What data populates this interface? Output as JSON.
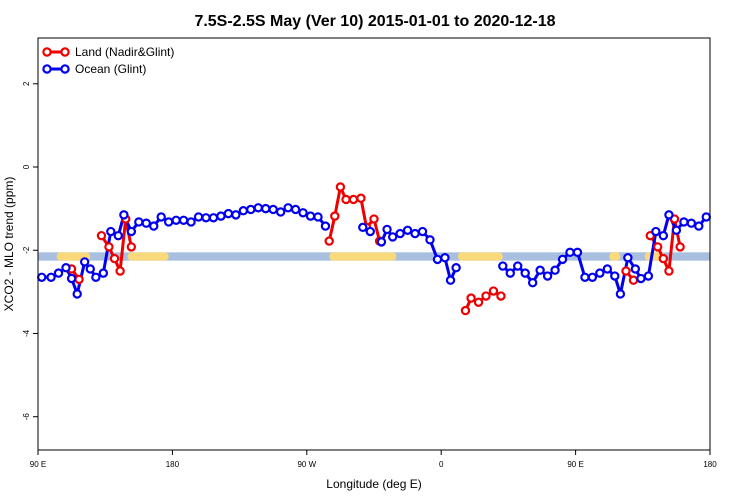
{
  "chart_data": {
    "type": "line",
    "title": "7.5S-2.5S May (Ver 10)   2015-01-01 to 2020-12-18",
    "xlabel": "Longitude (deg E)",
    "ylabel": "XCO2 - MLO trend (ppm)",
    "xlim": [
      90,
      450
    ],
    "ylim": [
      -6.8,
      3.1
    ],
    "x_ticks": [
      {
        "value": 90,
        "label": "90 E"
      },
      {
        "value": 162,
        "label": "180"
      },
      {
        "value": 234,
        "label": "90 W"
      },
      {
        "value": 306,
        "label": "0"
      },
      {
        "value": 378,
        "label": "90 E"
      },
      {
        "value": 450,
        "label": "180"
      }
    ],
    "y_ticks": [
      {
        "value": 2,
        "label": "2"
      },
      {
        "value": 0,
        "label": "0"
      },
      {
        "value": -2,
        "label": "-2"
      },
      {
        "value": -4,
        "label": "-4"
      },
      {
        "value": -6,
        "label": "-6"
      }
    ],
    "legend_position": "top-left",
    "colors": {
      "land": "#ee0000",
      "ocean": "#0000ee",
      "ocean_band": "#a9bfe0",
      "land_band": "#fad97a"
    },
    "band": {
      "y_top": -2.05,
      "y_bottom": -2.25
    },
    "land_segments": [
      [
        100,
        118
      ],
      [
        138,
        160
      ],
      [
        246,
        282
      ],
      [
        315,
        339
      ],
      [
        396,
        402
      ],
      [
        415,
        426
      ]
    ],
    "series": [
      {
        "name": "Land (Nadir&Glint)",
        "color": "#ee0000",
        "segments": [
          [
            [
              108,
              -2.45
            ],
            [
              112,
              -2.7
            ]
          ],
          [
            [
              124,
              -1.65
            ],
            [
              128,
              -1.92
            ],
            [
              131,
              -2.2
            ],
            [
              134,
              -2.5
            ],
            [
              137,
              -1.25
            ],
            [
              140,
              -1.92
            ]
          ],
          [
            [
              246,
              -1.78
            ],
            [
              249,
              -1.18
            ],
            [
              252,
              -0.48
            ],
            [
              255,
              -0.78
            ],
            [
              259,
              -0.78
            ],
            [
              263,
              -0.75
            ],
            [
              266,
              -1.45
            ],
            [
              270,
              -1.25
            ],
            [
              273,
              -1.78
            ]
          ],
          [
            [
              319,
              -3.45
            ],
            [
              322,
              -3.15
            ],
            [
              326,
              -3.25
            ],
            [
              330,
              -3.1
            ],
            [
              334,
              -2.98
            ],
            [
              338,
              -3.1
            ]
          ],
          [
            [
              405,
              -2.5
            ],
            [
              409,
              -2.72
            ]
          ],
          [
            [
              418,
              -1.65
            ],
            [
              422,
              -1.92
            ],
            [
              425,
              -2.2
            ],
            [
              428,
              -2.5
            ],
            [
              431,
              -1.25
            ],
            [
              434,
              -1.92
            ]
          ]
        ]
      },
      {
        "name": "Ocean (Glint)",
        "color": "#0000ee",
        "segments": [
          [
            [
              92,
              -2.65
            ],
            [
              97,
              -2.65
            ],
            [
              101,
              -2.55
            ],
            [
              105,
              -2.42
            ],
            [
              108,
              -2.68
            ],
            [
              111,
              -3.05
            ],
            [
              115,
              -2.28
            ],
            [
              118,
              -2.45
            ],
            [
              121,
              -2.65
            ],
            [
              125,
              -2.55
            ],
            [
              129,
              -1.55
            ],
            [
              133,
              -1.65
            ],
            [
              136,
              -1.15
            ],
            [
              140,
              -1.55
            ],
            [
              144,
              -1.32
            ],
            [
              148,
              -1.35
            ],
            [
              152,
              -1.42
            ],
            [
              156,
              -1.2
            ],
            [
              160,
              -1.32
            ],
            [
              164,
              -1.28
            ],
            [
              168,
              -1.28
            ],
            [
              172,
              -1.32
            ],
            [
              176,
              -1.2
            ],
            [
              180,
              -1.22
            ],
            [
              184,
              -1.22
            ],
            [
              188,
              -1.18
            ],
            [
              192,
              -1.12
            ],
            [
              196,
              -1.15
            ],
            [
              200,
              -1.05
            ],
            [
              204,
              -1.02
            ],
            [
              208,
              -0.98
            ],
            [
              212,
              -1.0
            ],
            [
              216,
              -1.02
            ],
            [
              220,
              -1.08
            ],
            [
              224,
              -0.98
            ],
            [
              228,
              -1.02
            ],
            [
              232,
              -1.1
            ],
            [
              236,
              -1.18
            ],
            [
              240,
              -1.2
            ],
            [
              244,
              -1.42
            ]
          ],
          [
            [
              264,
              -1.45
            ],
            [
              268,
              -1.55
            ]
          ],
          [
            [
              274,
              -1.8
            ],
            [
              277,
              -1.5
            ],
            [
              280,
              -1.68
            ],
            [
              284,
              -1.6
            ],
            [
              288,
              -1.52
            ],
            [
              292,
              -1.6
            ],
            [
              296,
              -1.55
            ],
            [
              300,
              -1.75
            ],
            [
              304,
              -2.22
            ],
            [
              308,
              -2.18
            ],
            [
              311,
              -2.72
            ],
            [
              314,
              -2.42
            ]
          ],
          [
            [
              339,
              -2.38
            ],
            [
              343,
              -2.55
            ],
            [
              347,
              -2.38
            ],
            [
              351,
              -2.55
            ],
            [
              355,
              -2.78
            ],
            [
              359,
              -2.48
            ],
            [
              363,
              -2.62
            ],
            [
              367,
              -2.48
            ],
            [
              371,
              -2.22
            ],
            [
              375,
              -2.05
            ],
            [
              379,
              -2.05
            ],
            [
              383,
              -2.65
            ],
            [
              387,
              -2.65
            ],
            [
              391,
              -2.55
            ],
            [
              395,
              -2.45
            ],
            [
              399,
              -2.62
            ],
            [
              402,
              -3.05
            ],
            [
              406,
              -2.18
            ],
            [
              410,
              -2.45
            ],
            [
              413,
              -2.68
            ],
            [
              417,
              -2.62
            ],
            [
              421,
              -1.55
            ],
            [
              425,
              -1.65
            ],
            [
              428,
              -1.15
            ],
            [
              432,
              -1.52
            ],
            [
              436,
              -1.32
            ],
            [
              440,
              -1.35
            ],
            [
              444,
              -1.42
            ],
            [
              448,
              -1.2
            ]
          ]
        ]
      }
    ]
  }
}
